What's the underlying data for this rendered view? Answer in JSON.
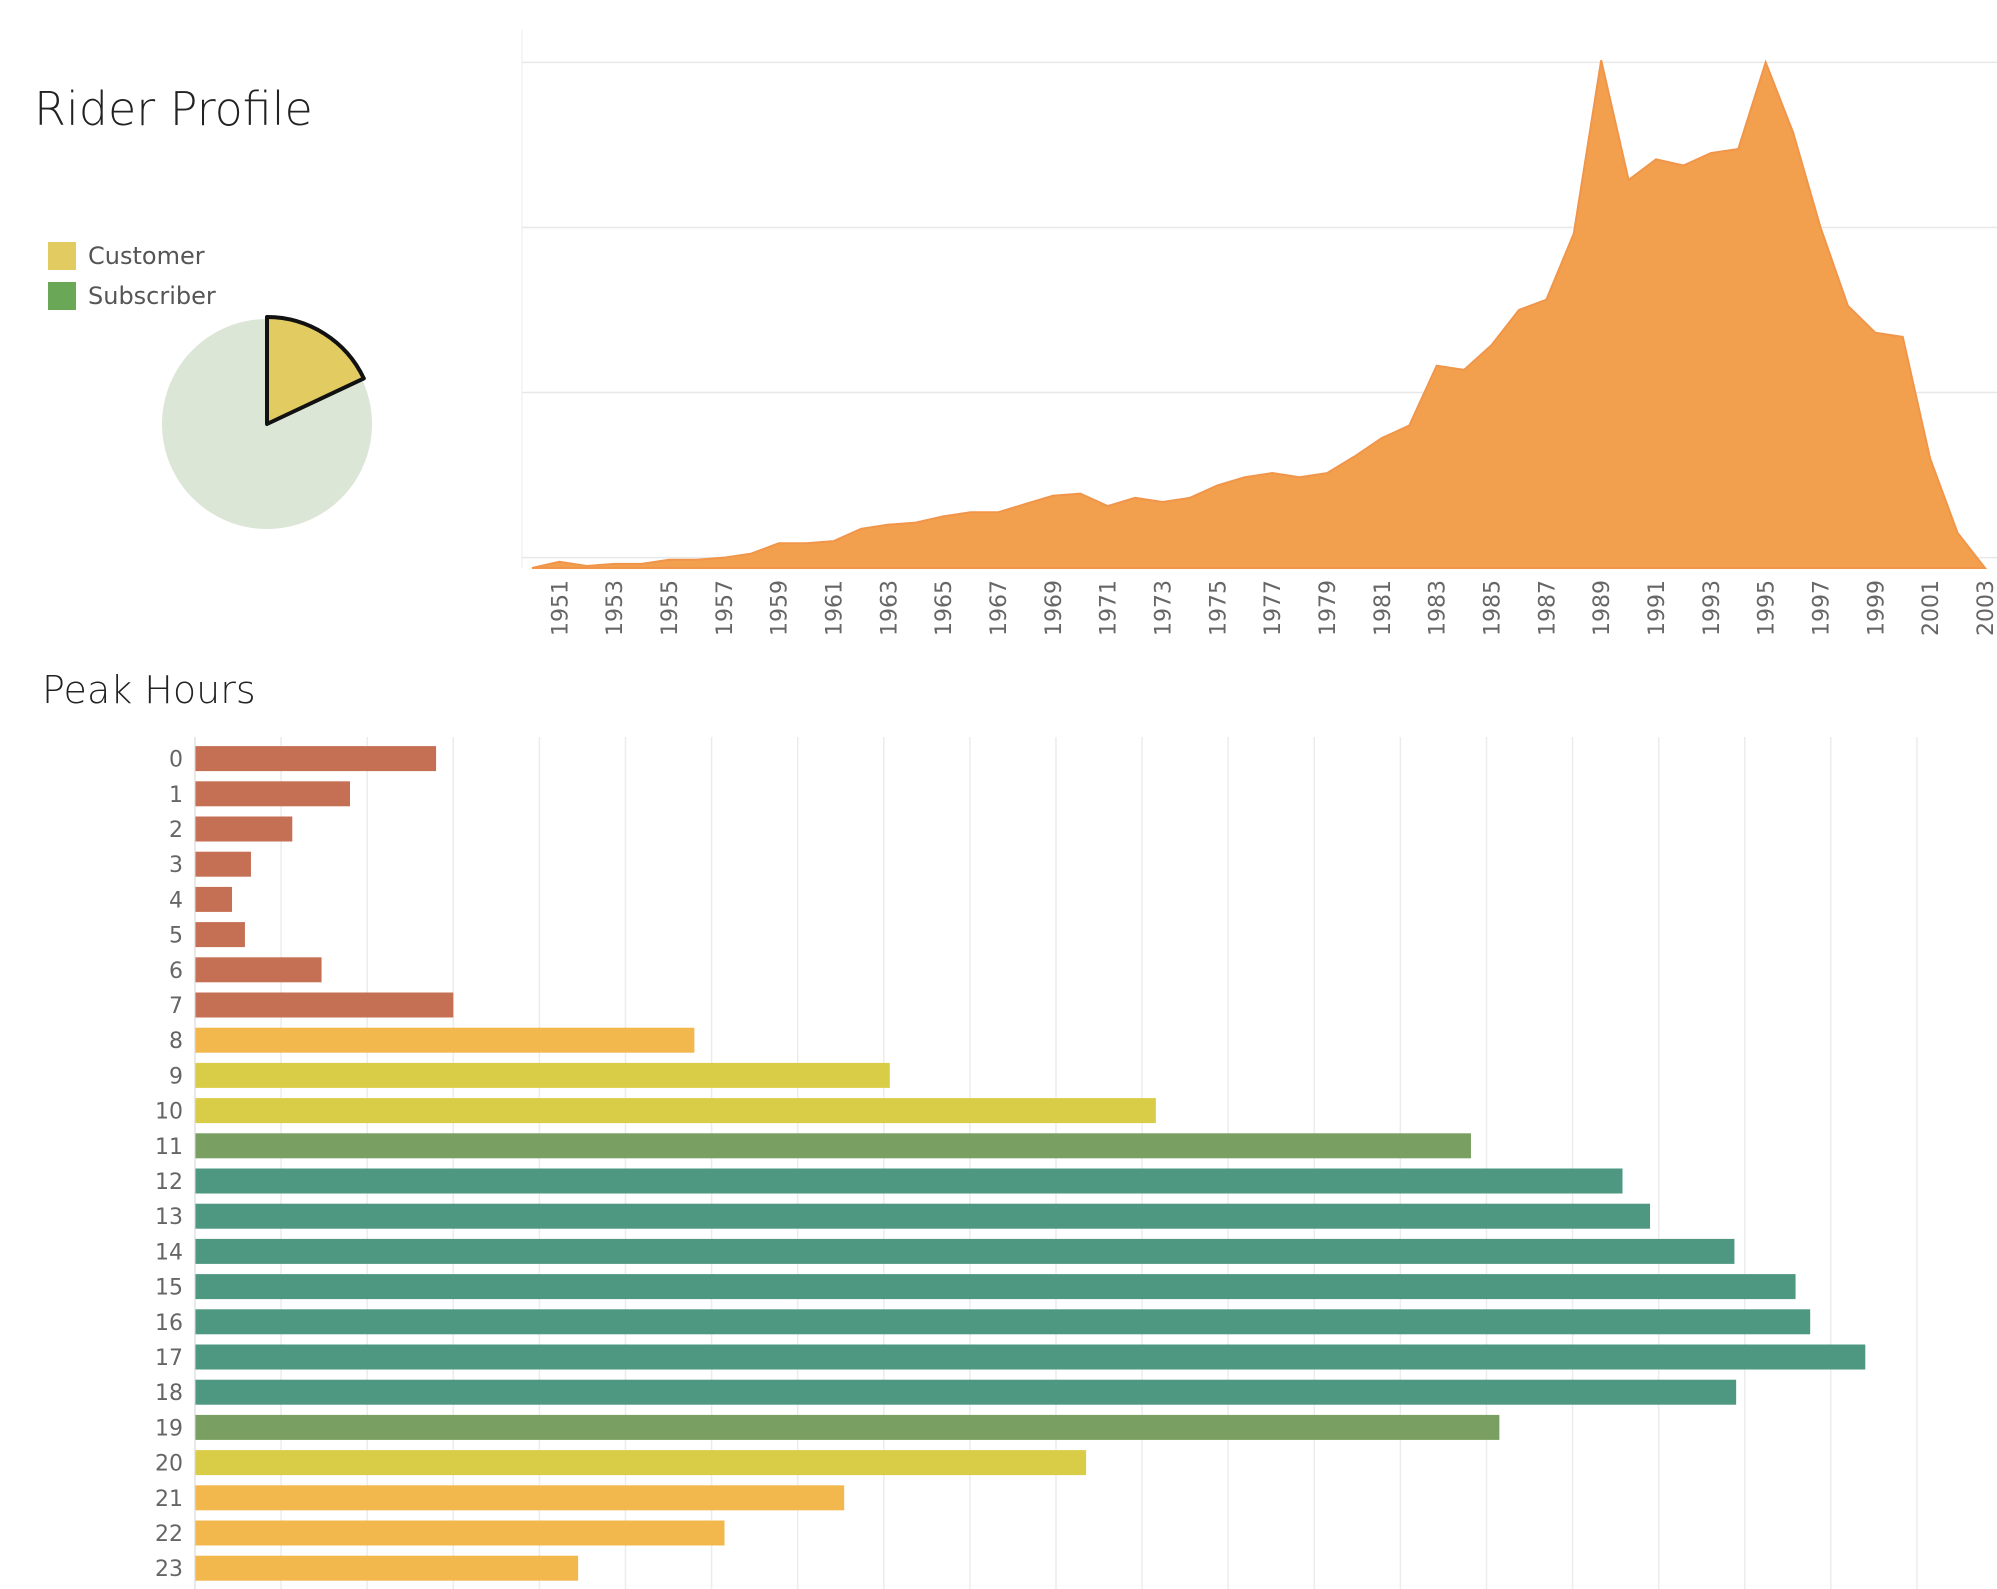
{
  "titles": {
    "rider_profile": "Rider Profile",
    "peak_hours": "Peak Hours"
  },
  "colors": {
    "customer": "#e2cc62",
    "subscriber": "#6aa857",
    "pie_subscriber_faded": "#dbe6d6",
    "area": "#f3a04e",
    "bar_low": "#c56f54",
    "bar_orange": "#f2b84e",
    "bar_yellow": "#d9cd47",
    "bar_green": "#7a9f62",
    "bar_teal": "#4e9781"
  },
  "chart_data": [
    {
      "type": "pie",
      "legend": [
        {
          "name": "Customer",
          "color": "#e2cc62"
        },
        {
          "name": "Subscriber",
          "color": "#6aa857"
        }
      ],
      "slices": [
        {
          "name": "Customer",
          "value": 18,
          "highlighted": true
        },
        {
          "name": "Subscriber",
          "value": 82,
          "highlighted": false
        }
      ],
      "legend_position": "top-left"
    },
    {
      "type": "area",
      "title": "",
      "xlabel": "",
      "ylabel": "",
      "x_tick_labels": [
        "1951",
        "1953",
        "1955",
        "1957",
        "1959",
        "1961",
        "1963",
        "1965",
        "1967",
        "1969",
        "1971",
        "1973",
        "1975",
        "1977",
        "1979",
        "1981",
        "1983",
        "1985",
        "1987",
        "1989",
        "1991",
        "1993",
        "1995",
        "1997",
        "1999",
        "2001",
        "2003"
      ],
      "x": [
        1950,
        1951,
        1952,
        1953,
        1954,
        1955,
        1956,
        1957,
        1958,
        1959,
        1960,
        1961,
        1962,
        1963,
        1964,
        1965,
        1966,
        1967,
        1968,
        1969,
        1970,
        1971,
        1972,
        1973,
        1974,
        1975,
        1976,
        1977,
        1978,
        1979,
        1980,
        1981,
        1982,
        1983,
        1984,
        1985,
        1986,
        1987,
        1988,
        1989,
        1990,
        1991,
        1992,
        1993,
        1994,
        1995,
        1996,
        1997,
        1998,
        1999,
        2000,
        2001,
        2002,
        2003
      ],
      "y": [
        0,
        3,
        1,
        2,
        2,
        4,
        4,
        5,
        7,
        12,
        12,
        13,
        19,
        21,
        22,
        25,
        27,
        27,
        31,
        35,
        36,
        30,
        34,
        32,
        34,
        40,
        44,
        46,
        44,
        46,
        54,
        63,
        69,
        98,
        96,
        108,
        125,
        130,
        162,
        246,
        188,
        198,
        195,
        201,
        203,
        245,
        211,
        165,
        127,
        114,
        112,
        53,
        17,
        0
      ],
      "ylim": [
        0,
        250
      ],
      "grid": "horizontal"
    },
    {
      "type": "bar",
      "orientation": "horizontal",
      "categories": [
        "0",
        "1",
        "2",
        "3",
        "4",
        "5",
        "6",
        "7",
        "8",
        "9",
        "10",
        "11",
        "12",
        "13",
        "14",
        "15",
        "16",
        "17",
        "18",
        "19",
        "20",
        "21",
        "22",
        "23"
      ],
      "values": [
        28,
        18,
        11.3,
        6.5,
        4.3,
        5.8,
        14.7,
        30,
        58,
        80.7,
        111.6,
        148.2,
        165.8,
        169,
        178.8,
        185.9,
        187.6,
        194,
        179,
        151.5,
        103.5,
        75.4,
        61.5,
        44.5
      ],
      "bar_colors": [
        "#c56f54",
        "#c56f54",
        "#c56f54",
        "#c56f54",
        "#c56f54",
        "#c56f54",
        "#c56f54",
        "#c56f54",
        "#f2b84e",
        "#d9cd47",
        "#d9cd47",
        "#7a9f62",
        "#4e9781",
        "#4e9781",
        "#4e9781",
        "#4e9781",
        "#4e9781",
        "#4e9781",
        "#4e9781",
        "#7a9f62",
        "#d9cd47",
        "#f2b84e",
        "#f2b84e",
        "#f2b84e"
      ],
      "xlim": [
        0,
        205
      ],
      "grid": "vertical"
    }
  ]
}
